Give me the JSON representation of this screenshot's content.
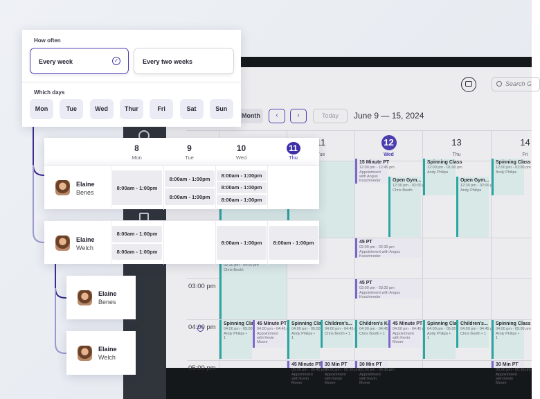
{
  "frequency": {
    "title": "How often",
    "options": [
      "Every week",
      "Every two weeks"
    ],
    "days_title": "Which days",
    "days": [
      "Mon",
      "Tue",
      "Wed",
      "Thur",
      "Fri",
      "Sat",
      "Sun"
    ]
  },
  "schedule": {
    "columns": [
      {
        "date": "8",
        "day": "Mon"
      },
      {
        "date": "9",
        "day": "Tue"
      },
      {
        "date": "10",
        "day": "Wed"
      },
      {
        "date": "11",
        "day": "Thu"
      }
    ],
    "rows": [
      {
        "first": "Elaine",
        "last": "Benes",
        "shifts": [
          [
            "8:00am - 1:00pm"
          ],
          [
            "8:00am - 1:00pm",
            "8:00am - 1:00pm"
          ],
          [
            "8:00am - 1:00pm",
            "8:00am - 1:00pm",
            "8:00am - 1:00pm"
          ],
          []
        ]
      },
      {
        "first": "Elaine",
        "last": "Welch",
        "shifts": [
          [
            "8:00am - 1:00pm",
            "8:00am - 1:00pm"
          ],
          [],
          [
            "8:00am - 1:00pm"
          ],
          [
            "8:00am - 1:00pm"
          ]
        ]
      }
    ]
  },
  "staff_cards": [
    {
      "first": "Elaine",
      "last": "Benes"
    },
    {
      "first": "Elaine",
      "last": "Welch"
    }
  ],
  "calendar": {
    "search": "Search G",
    "view": "Month",
    "today": "Today",
    "range": "June 9 — 15, 2024",
    "days": [
      {
        "date": "11",
        "day": "Tue"
      },
      {
        "date": "12",
        "day": "Wed"
      },
      {
        "date": "13",
        "day": "Thu"
      },
      {
        "date": "14",
        "day": "Fri"
      }
    ],
    "times": [
      "03:00 pm",
      "04:00 pm",
      "05:00 pm"
    ],
    "events": [
      {
        "title": "15 Minute PT",
        "time": "12:00 pm - 12:45 pm",
        "detail": "Appointment with Angus Koschmeder"
      },
      {
        "title": "Open Gym...",
        "time": "12:30 pm - 02:00 pm",
        "detail": "Chris Booth"
      },
      {
        "title": "Spinning Class",
        "time": "12:00 pm - 01:00 pm",
        "detail": "Andy Philips"
      },
      {
        "title": "Open Gym...",
        "time": "12:30 pm - 02:00 pm",
        "detail": "Andy Philips"
      },
      {
        "title": "Spinning Class",
        "time": "12:00 pm - 01:00 pm",
        "detail": "Andy Philips"
      },
      {
        "title": "45 PT",
        "time": "02:00 pm - 02:30 pm",
        "detail": "Appointment with Angus Koschmeder"
      },
      {
        "time": "02:30 pm - 04:00 pm",
        "detail": "Chris Booth"
      },
      {
        "title": "45 PT",
        "time": "03:00 pm - 03:30 pm",
        "detail": "Appointment with Angus Koschmeder"
      },
      {
        "title": "Spinning Class",
        "time": "04:00 pm - 05:00 pm",
        "detail": "Andy Philips • 1"
      },
      {
        "title": "45 Minute PT",
        "time": "04:00 pm - 04:45 pm",
        "detail": "Appointment with Kevin Moore"
      },
      {
        "title": "Spinning Class",
        "time": "04:00 pm - 05:00 pm",
        "detail": "Andy Philips • 1"
      },
      {
        "title": "Children's...",
        "time": "04:00 pm - 04:45 pm",
        "detail": "Chris Booth • 1"
      },
      {
        "title": "Children's Kara...",
        "time": "04:00 pm - 04:45 pm",
        "detail": "Chris Booth • 1"
      },
      {
        "title": "45 Minute PT",
        "time": "04:00 pm - 04:45 pm",
        "detail": "Appointment with Kevin Moore"
      },
      {
        "title": "Spinning Class",
        "time": "04:00 pm - 05:00 pm",
        "detail": "Andy Philips • 1"
      },
      {
        "title": "Children's...",
        "time": "04:00 pm - 04:45 pm",
        "detail": "Chris Booth • 1"
      },
      {
        "title": "Spinning Class",
        "time": "04:00 pm - 05:00 pm",
        "detail": "Andy Philips • 1"
      },
      {
        "title": "45 Minute PT",
        "time": "05:00 pm - 05:45 pm",
        "detail": "Appointment with Kevin Moore"
      },
      {
        "title": "30 Min PT",
        "time": "05:00 pm - 05:30 pm",
        "detail": "Appointment with Kevin Moore"
      },
      {
        "title": "30 Min PT",
        "time": "05:00 pm - 05:30 pm",
        "detail": "Appointment with Kevin Moore"
      },
      {
        "title": "30 Min PT",
        "time": "05:00 pm - 05:30 pm",
        "detail": "Appointment with Kevin Moore"
      }
    ]
  }
}
